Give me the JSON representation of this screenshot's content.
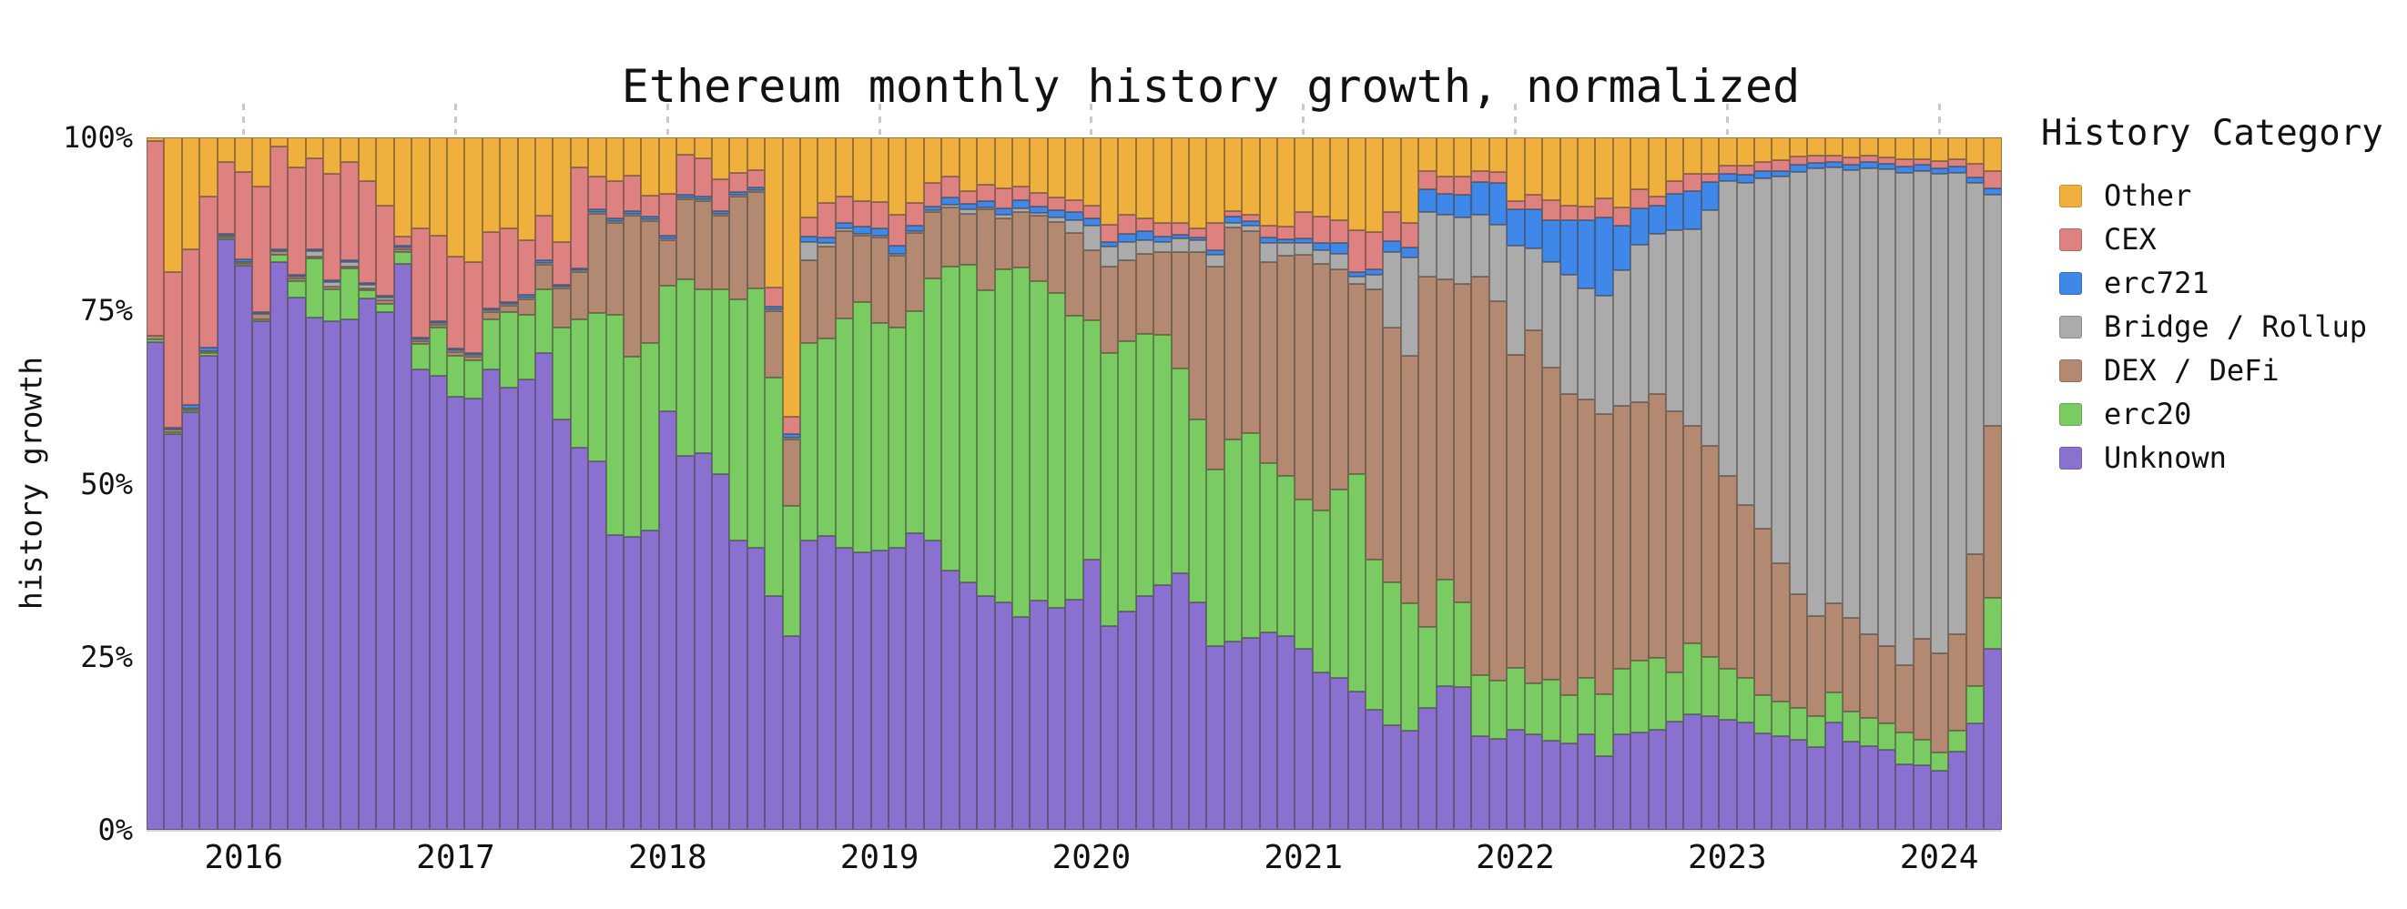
{
  "title": "Ethereum monthly history growth, normalized",
  "y_axis": {
    "label": "history growth",
    "ticks": [
      {
        "label": "0%",
        "value": 0
      },
      {
        "label": "25%",
        "value": 25
      },
      {
        "label": "50%",
        "value": 50
      },
      {
        "label": "75%",
        "value": 75
      },
      {
        "label": "100%",
        "value": 100
      }
    ]
  },
  "x_axis": {
    "year_ticks": [
      {
        "label": "2016",
        "month_index": 5
      },
      {
        "label": "2017",
        "month_index": 17
      },
      {
        "label": "2018",
        "month_index": 29
      },
      {
        "label": "2019",
        "month_index": 41
      },
      {
        "label": "2020",
        "month_index": 53
      },
      {
        "label": "2021",
        "month_index": 65
      },
      {
        "label": "2022",
        "month_index": 77
      },
      {
        "label": "2023",
        "month_index": 89
      },
      {
        "label": "2024",
        "month_index": 101
      }
    ]
  },
  "legend": {
    "title": "History Category",
    "items": [
      {
        "label": "Other",
        "color": "#F0B03D"
      },
      {
        "label": "CEX",
        "color": "#DD8181"
      },
      {
        "label": "erc721",
        "color": "#3F88E9"
      },
      {
        "label": "Bridge / Rollup",
        "color": "#ABABAB"
      },
      {
        "label": "DEX / DeFi",
        "color": "#B38A71"
      },
      {
        "label": "erc20",
        "color": "#79CB62"
      },
      {
        "label": "Unknown",
        "color": "#8B71CF"
      }
    ]
  },
  "chart_data": {
    "type": "bar",
    "stacked": true,
    "normalized": true,
    "title": "Ethereum monthly history growth, normalized",
    "xlabel": "",
    "ylabel": "history growth",
    "ylim": [
      0,
      100
    ],
    "grid": false,
    "legend_position": "right",
    "units": "percent",
    "x_months": [
      "2015-08",
      "2015-09",
      "2015-10",
      "2015-11",
      "2015-12",
      "2016-01",
      "2016-02",
      "2016-03",
      "2016-04",
      "2016-05",
      "2016-06",
      "2016-07",
      "2016-08",
      "2016-09",
      "2016-10",
      "2016-11",
      "2016-12",
      "2017-01",
      "2017-02",
      "2017-03",
      "2017-04",
      "2017-05",
      "2017-06",
      "2017-07",
      "2017-08",
      "2017-09",
      "2017-10",
      "2017-11",
      "2017-12",
      "2018-01",
      "2018-02",
      "2018-03",
      "2018-04",
      "2018-05",
      "2018-06",
      "2018-07",
      "2018-08",
      "2018-09",
      "2018-10",
      "2018-11",
      "2018-12",
      "2019-01",
      "2019-02",
      "2019-03",
      "2019-04",
      "2019-05",
      "2019-06",
      "2019-07",
      "2019-08",
      "2019-09",
      "2019-10",
      "2019-11",
      "2019-12",
      "2020-01",
      "2020-02",
      "2020-03",
      "2020-04",
      "2020-05",
      "2020-06",
      "2020-07",
      "2020-08",
      "2020-09",
      "2020-10",
      "2020-11",
      "2020-12",
      "2021-01",
      "2021-02",
      "2021-03",
      "2021-04",
      "2021-05",
      "2021-06",
      "2021-07",
      "2021-08",
      "2021-09",
      "2021-10",
      "2021-11",
      "2021-12",
      "2022-01",
      "2022-02",
      "2022-03",
      "2022-04",
      "2022-05",
      "2022-06",
      "2022-07",
      "2022-08",
      "2022-09",
      "2022-10",
      "2022-11",
      "2022-12",
      "2023-01",
      "2023-02",
      "2023-03",
      "2023-04",
      "2023-05",
      "2023-06",
      "2023-07",
      "2023-08",
      "2023-09",
      "2023-10",
      "2023-11",
      "2023-12",
      "2024-01",
      "2024-02",
      "2024-03",
      "2024-04"
    ],
    "series_render_order": "bottom-to-top",
    "series": [
      {
        "name": "Unknown",
        "color": "#8B71CF",
        "values": [
          70.5,
          57.3,
          60.3,
          68.5,
          85.4,
          81.5,
          73.5,
          82.1,
          77.0,
          74.0,
          73.5,
          73.8,
          76.8,
          74.8,
          81.8,
          66.6,
          65.6,
          62.6,
          62.3,
          66.6,
          64.0,
          65.1,
          68.9,
          59.3,
          55.2,
          53.2,
          42.6,
          42.3,
          43.2,
          60.5,
          54.0,
          54.5,
          51.4,
          41.8,
          40.8,
          33.8,
          28.0,
          41.8,
          42.4,
          40.8,
          40.1,
          40.4,
          40.8,
          42.8,
          41.8,
          37.5,
          35.8,
          33.8,
          32.8,
          30.8,
          33.1,
          32.1,
          33.3,
          39.0,
          29.5,
          31.5,
          33.8,
          35.3,
          37.1,
          32.8,
          26.6,
          27.2,
          27.7,
          28.5,
          28.0,
          26.2,
          22.7,
          22.0,
          20.0,
          17.4,
          15.1,
          14.3,
          17.6,
          20.7,
          20.6,
          13.6,
          13.1,
          14.6,
          13.8,
          12.9,
          12.5,
          13.8,
          10.6,
          13.8,
          14.1,
          14.5,
          15.6,
          16.7,
          16.4,
          15.9,
          15.5,
          14.0,
          13.5,
          13.0,
          12.0,
          15.5,
          12.7,
          12.1,
          11.6,
          9.4,
          9.3,
          8.6,
          11.3,
          15.3,
          26.1
        ]
      },
      {
        "name": "erc20",
        "color": "#79CB62",
        "values": [
          0.3,
          0.2,
          0.3,
          0.3,
          0.2,
          0.3,
          0.3,
          1.0,
          2.3,
          8.6,
          4.6,
          7.3,
          1.2,
          1.2,
          1.7,
          3.6,
          7.0,
          6.0,
          5.6,
          7.2,
          10.9,
          9.3,
          9.2,
          13.3,
          18.6,
          21.5,
          31.8,
          26.1,
          27.2,
          18.1,
          25.5,
          23.6,
          26.7,
          34.8,
          37.5,
          31.5,
          18.8,
          28.5,
          28.6,
          33.1,
          36.1,
          32.8,
          31.8,
          32.1,
          37.8,
          43.8,
          45.8,
          44.1,
          48.1,
          50.4,
          46.1,
          45.4,
          41.0,
          34.6,
          39.3,
          39.1,
          37.8,
          36.2,
          29.5,
          26.5,
          25.4,
          29.2,
          29.6,
          24.5,
          23.1,
          21.5,
          23.4,
          27.2,
          31.4,
          21.6,
          20.7,
          18.4,
          11.7,
          15.4,
          12.3,
          8.8,
          8.4,
          9.0,
          7.3,
          8.8,
          6.9,
          8.2,
          9.0,
          9.5,
          10.3,
          10.4,
          7.1,
          10.3,
          8.6,
          7.4,
          6.5,
          5.5,
          5.0,
          4.6,
          4.4,
          4.4,
          4.4,
          4.0,
          3.8,
          4.6,
          3.7,
          2.6,
          3.0,
          5.5,
          7.4
        ]
      },
      {
        "name": "DEX / DeFi",
        "color": "#B38A71",
        "values": [
          0.5,
          0.3,
          0.3,
          0.3,
          0.2,
          0.2,
          0.7,
          0.5,
          0.4,
          0.3,
          0.4,
          0.3,
          0.3,
          0.5,
          0.4,
          0.5,
          0.4,
          0.5,
          0.5,
          1.1,
          0.9,
          2.3,
          3.6,
          5.6,
          6.8,
          14.3,
          13.3,
          20.3,
          17.6,
          6.6,
          11.6,
          12.7,
          10.6,
          14.9,
          13.9,
          9.6,
          9.6,
          11.9,
          13.3,
          12.6,
          9.6,
          12.3,
          10.3,
          11.3,
          9.6,
          8.6,
          7.3,
          11.7,
          7.4,
          8.0,
          9.5,
          10.3,
          11.9,
          10.1,
          12.6,
          11.6,
          11.6,
          11.9,
          16.9,
          24.1,
          29.4,
          30.6,
          29.2,
          29.0,
          31.8,
          35.3,
          35.6,
          31.8,
          27.4,
          39.1,
          36.8,
          35.8,
          50.6,
          43.4,
          46.0,
          57.5,
          54.8,
          45.5,
          51.0,
          45.0,
          43.5,
          40.2,
          40.4,
          38.0,
          37.4,
          38.1,
          37.8,
          31.4,
          30.5,
          27.8,
          25.0,
          24.0,
          20.0,
          16.5,
          14.5,
          12.8,
          13.5,
          12.1,
          11.2,
          9.8,
          14.6,
          14.3,
          13.9,
          19.0,
          24.9
        ]
      },
      {
        "name": "Bridge / Rollup",
        "color": "#ABABAB",
        "values": [
          0,
          0,
          0,
          0,
          0,
          0,
          0,
          0,
          0.2,
          0.7,
          0.6,
          0.6,
          0.4,
          0.4,
          0.2,
          0.2,
          0.2,
          0.2,
          0.2,
          0.2,
          0.2,
          0.2,
          0.2,
          0.2,
          0.2,
          0.2,
          0.2,
          0.2,
          0.2,
          0.2,
          0.2,
          0.2,
          0.2,
          0.2,
          0.2,
          0.2,
          0.2,
          2.7,
          0.5,
          0.3,
          0.3,
          0.3,
          0.3,
          0.3,
          0.3,
          0.4,
          0.7,
          0.3,
          0.5,
          0.5,
          0.4,
          0.7,
          1.9,
          3.5,
          2.8,
          2.7,
          2.0,
          1.5,
          1.9,
          1.8,
          1.6,
          0.7,
          0.7,
          2.8,
          1.9,
          1.7,
          2.0,
          2.2,
          1.1,
          2.0,
          10.8,
          14.1,
          9.3,
          9.4,
          9.5,
          8.9,
          11.1,
          16.0,
          11.8,
          15.2,
          17.2,
          16.0,
          17.2,
          19.5,
          22.7,
          23.1,
          26.1,
          28.3,
          34.0,
          42.6,
          46.5,
          50.7,
          56.0,
          61.2,
          64.7,
          63.0,
          64.8,
          67.3,
          68.8,
          71.1,
          67.5,
          69.3,
          66.6,
          53.5,
          33.3
        ]
      },
      {
        "name": "erc721",
        "color": "#3F88E9",
        "values": [
          0,
          0.2,
          0.5,
          0.5,
          0.2,
          0.4,
          0.2,
          0.2,
          0.2,
          0.2,
          0.2,
          0.2,
          0.2,
          0.2,
          0.2,
          0.2,
          0.2,
          0.2,
          0.2,
          0.2,
          0.2,
          0.3,
          0.4,
          0.3,
          0.3,
          0.4,
          0.4,
          0.4,
          0.4,
          0.4,
          0.4,
          0.4,
          0.4,
          0.4,
          0.4,
          0.4,
          0.5,
          0.8,
          0.8,
          0.9,
          1.0,
          1.0,
          1.2,
          0.8,
          0.5,
          1.0,
          0.8,
          0.9,
          1.0,
          1.3,
          0.9,
          1.0,
          1.1,
          1.1,
          0.7,
          1.2,
          1.3,
          0.8,
          0.5,
          0.4,
          0.7,
          0.9,
          0.7,
          0.8,
          0.5,
          0.7,
          1.1,
          1.5,
          0.7,
          0.8,
          1.6,
          1.5,
          3.3,
          3.0,
          3.3,
          4.8,
          6.0,
          5.2,
          5.7,
          6.0,
          8.0,
          9.8,
          11.2,
          6.4,
          5.2,
          4.1,
          5.3,
          5.6,
          4.1,
          1.0,
          1.2,
          1.0,
          0.7,
          1.0,
          0.7,
          0.7,
          0.8,
          0.9,
          0.8,
          0.9,
          0.9,
          0.8,
          0.9,
          0.8,
          0.9
        ]
      },
      {
        "name": "CEX",
        "color": "#DD8181",
        "values": [
          28.2,
          22.5,
          22.4,
          21.9,
          10.4,
          12.6,
          18.2,
          14.9,
          15.6,
          13.2,
          15.4,
          14.2,
          14.8,
          13.0,
          1.3,
          15.7,
          12.4,
          13.3,
          13.2,
          11.0,
          10.6,
          8.0,
          6.4,
          6.2,
          14.5,
          4.7,
          5.4,
          5.2,
          3.0,
          6.0,
          5.8,
          5.6,
          4.7,
          2.8,
          2.5,
          2.8,
          2.5,
          2.8,
          4.9,
          3.7,
          3.7,
          3.9,
          4.5,
          3.2,
          3.5,
          3.0,
          1.9,
          2.4,
          2.8,
          1.9,
          2.0,
          1.9,
          1.8,
          1.9,
          2.5,
          2.7,
          1.8,
          2.0,
          1.7,
          1.3,
          4.0,
          0.7,
          0.9,
          1.7,
          1.8,
          3.8,
          3.8,
          3.3,
          6.0,
          5.4,
          4.2,
          3.6,
          2.7,
          2.5,
          2.7,
          1.6,
          1.6,
          1.3,
          2.1,
          2.9,
          2.1,
          2.0,
          2.8,
          2.7,
          2.8,
          1.3,
          1.8,
          2.5,
          1.1,
          1.2,
          1.3,
          1.3,
          1.6,
          1.2,
          1.1,
          1.0,
          1.0,
          1.0,
          0.9,
          1.0,
          0.9,
          1.1,
          1.0,
          2.0,
          2.5
        ]
      },
      {
        "name": "Other",
        "color": "#F0B03D",
        "values": [
          0.5,
          19.5,
          16.2,
          8.5,
          3.6,
          5.0,
          7.1,
          1.3,
          4.3,
          3.0,
          5.3,
          3.6,
          6.3,
          9.9,
          14.4,
          13.2,
          14.2,
          17.2,
          18.0,
          13.7,
          13.2,
          14.8,
          11.3,
          15.1,
          4.4,
          5.7,
          6.3,
          5.5,
          8.4,
          8.2,
          2.5,
          3.0,
          6.0,
          5.1,
          4.7,
          21.7,
          40.4,
          11.5,
          9.5,
          8.6,
          9.2,
          9.3,
          11.1,
          9.5,
          6.5,
          5.7,
          7.7,
          6.8,
          7.4,
          7.1,
          8.0,
          8.6,
          9.0,
          9.8,
          12.6,
          11.2,
          11.7,
          12.3,
          12.4,
          13.1,
          12.3,
          10.7,
          11.2,
          12.7,
          12.9,
          10.8,
          11.4,
          12.0,
          13.4,
          13.7,
          10.8,
          12.3,
          4.8,
          5.6,
          5.6,
          4.8,
          5.0,
          9.2,
          8.2,
          9.1,
          9.8,
          10.0,
          8.8,
          10.1,
          7.5,
          8.5,
          6.3,
          5.2,
          5.3,
          4.1,
          4.1,
          3.6,
          3.3,
          2.8,
          2.6,
          2.6,
          2.9,
          2.6,
          2.9,
          3.2,
          3.1,
          3.4,
          3.2,
          3.8,
          4.9
        ]
      }
    ]
  }
}
